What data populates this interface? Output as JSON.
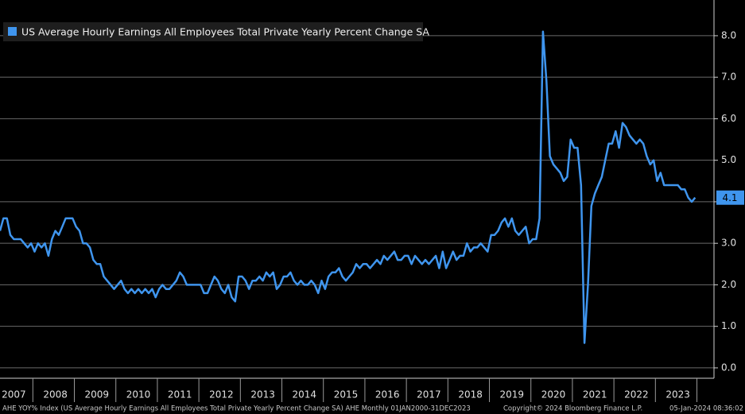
{
  "chart_data": {
    "type": "line",
    "series": [
      {
        "name": "US Average Hourly Earnings All Employees Total Private Yearly Percent Change SA",
        "color": "#3f95ee",
        "values": [
          3.3,
          3.6,
          3.6,
          3.2,
          3.1,
          3.1,
          3.1,
          3.0,
          2.9,
          3.0,
          2.8,
          3.0,
          2.9,
          3.0,
          2.7,
          3.1,
          3.3,
          3.2,
          3.4,
          3.6,
          3.6,
          3.6,
          3.4,
          3.3,
          3.0,
          3.0,
          2.9,
          2.6,
          2.5,
          2.5,
          2.2,
          2.1,
          2.0,
          1.9,
          2.0,
          2.1,
          1.9,
          1.8,
          1.9,
          1.8,
          1.9,
          1.8,
          1.9,
          1.8,
          1.9,
          1.7,
          1.9,
          2.0,
          1.9,
          1.9,
          2.0,
          2.1,
          2.3,
          2.2,
          2.0,
          2.0,
          2.0,
          2.0,
          2.0,
          1.8,
          1.8,
          2.0,
          2.2,
          2.1,
          1.9,
          1.8,
          2.0,
          1.7,
          1.6,
          2.2,
          2.2,
          2.1,
          1.9,
          2.1,
          2.1,
          2.2,
          2.1,
          2.3,
          2.2,
          2.3,
          1.9,
          2.0,
          2.2,
          2.2,
          2.3,
          2.1,
          2.0,
          2.1,
          2.0,
          2.0,
          2.1,
          2.0,
          1.8,
          2.1,
          1.9,
          2.2,
          2.3,
          2.3,
          2.4,
          2.2,
          2.1,
          2.2,
          2.3,
          2.5,
          2.4,
          2.5,
          2.5,
          2.4,
          2.5,
          2.6,
          2.5,
          2.7,
          2.6,
          2.7,
          2.8,
          2.6,
          2.6,
          2.7,
          2.7,
          2.5,
          2.7,
          2.6,
          2.5,
          2.6,
          2.5,
          2.6,
          2.7,
          2.4,
          2.8,
          2.4,
          2.6,
          2.8,
          2.6,
          2.7,
          2.7,
          3.0,
          2.8,
          2.9,
          2.9,
          3.0,
          2.9,
          2.8,
          3.2,
          3.2,
          3.3,
          3.5,
          3.6,
          3.4,
          3.6,
          3.3,
          3.2,
          3.3,
          3.4,
          3.0,
          3.1,
          3.1,
          3.6,
          8.1,
          6.9,
          5.1,
          4.9,
          4.8,
          4.7,
          4.5,
          4.6,
          5.5,
          5.3,
          5.3,
          4.4,
          0.6,
          2.0,
          3.9,
          4.2,
          4.4,
          4.6,
          5.0,
          5.4,
          5.4,
          5.7,
          5.3,
          5.9,
          5.8,
          5.6,
          5.5,
          5.4,
          5.5,
          5.4,
          5.1,
          4.9,
          5.0,
          4.5,
          4.7,
          4.4,
          4.4,
          4.4,
          4.4,
          4.4,
          4.3,
          4.3,
          4.1,
          4.0,
          4.1
        ]
      }
    ],
    "categories": [
      null,
      null,
      null,
      null,
      "2007",
      null,
      null,
      null,
      null,
      null,
      null,
      null,
      null,
      null,
      null,
      null,
      "2008",
      null,
      null,
      null,
      null,
      null,
      null,
      null,
      null,
      null,
      null,
      null,
      "2009",
      null,
      null,
      null,
      null,
      null,
      null,
      null,
      null,
      null,
      null,
      null,
      "2010",
      null,
      null,
      null,
      null,
      null,
      null,
      null,
      null,
      null,
      null,
      null,
      "2011",
      null,
      null,
      null,
      null,
      null,
      null,
      null,
      null,
      null,
      null,
      null,
      "2012",
      null,
      null,
      null,
      null,
      null,
      null,
      null,
      null,
      null,
      null,
      null,
      "2013",
      null,
      null,
      null,
      null,
      null,
      null,
      null,
      null,
      null,
      null,
      null,
      "2014",
      null,
      null,
      null,
      null,
      null,
      null,
      null,
      null,
      null,
      null,
      null,
      "2015",
      null,
      null,
      null,
      null,
      null,
      null,
      null,
      null,
      null,
      null,
      null,
      "2016",
      null,
      null,
      null,
      null,
      null,
      null,
      null,
      null,
      null,
      null,
      null,
      "2017",
      null,
      null,
      null,
      null,
      null,
      null,
      null,
      null,
      null,
      null,
      null,
      "2018",
      null,
      null,
      null,
      null,
      null,
      null,
      null,
      null,
      null,
      null,
      null,
      "2019",
      null,
      null,
      null,
      null,
      null,
      null,
      null,
      null,
      null,
      null,
      null,
      "2020",
      null,
      null,
      null,
      null,
      null,
      null,
      null,
      null,
      null,
      null,
      null,
      "2021",
      null,
      null,
      null,
      null,
      null,
      null,
      null,
      null,
      null,
      null,
      null,
      "2022",
      null,
      null,
      null,
      null,
      null,
      null,
      null,
      null,
      null,
      null,
      null,
      "2023",
      null,
      null,
      null,
      null,
      null
    ],
    "ylim": [
      -0.25,
      8.86
    ],
    "yticks": [
      {
        "value": 0,
        "label": "0.0"
      },
      {
        "value": 1,
        "label": "1.0"
      },
      {
        "value": 2,
        "label": "2.0"
      },
      {
        "value": 3,
        "label": "3.0"
      },
      {
        "value": 4,
        "label": "4.0"
      },
      {
        "value": 5,
        "label": "5.0"
      },
      {
        "value": 6,
        "label": "6.0"
      },
      {
        "value": 7,
        "label": "7.0"
      },
      {
        "value": 8,
        "label": "8.0"
      }
    ],
    "grid": true,
    "legend": "upper-left",
    "footer": [
      "AHE YOY% Index (US Average Hourly Earnings All Employees Total Private Yearly Percent Change SA) AHE  Monthly 01JAN2000-31DEC2023",
      "Copyright© 2024 Bloomberg Finance L.P.",
      "05-Jan-2024 08:36:02"
    ]
  }
}
